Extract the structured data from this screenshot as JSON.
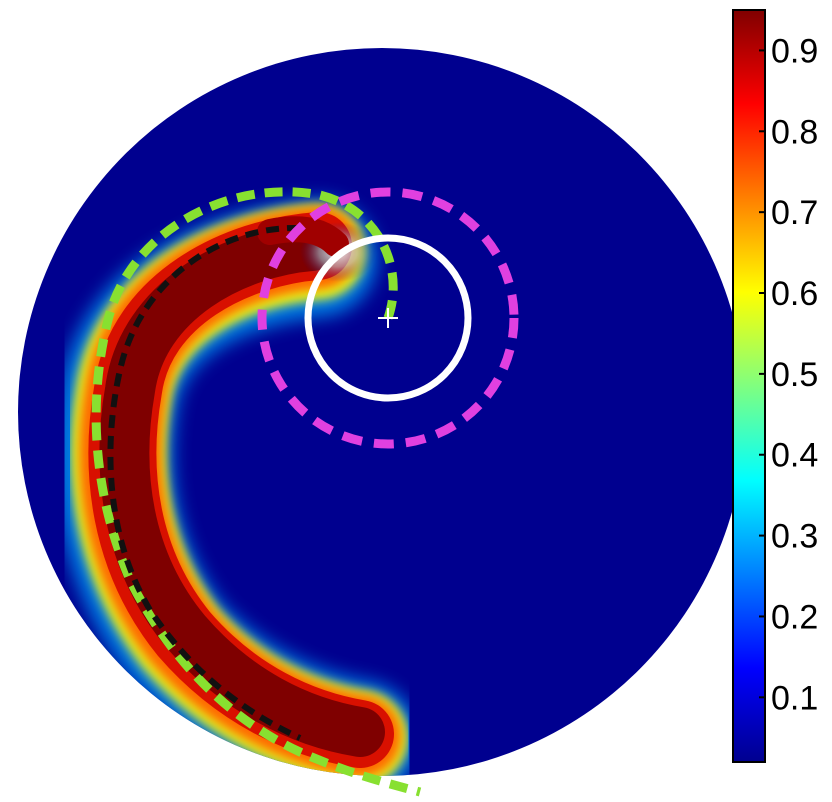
{
  "chart_data": {
    "type": "heatmap",
    "description_shape": "disk",
    "title": "",
    "xlabel": "",
    "ylabel": "",
    "colormap": "jet",
    "colorbar": {
      "range": [
        0.02,
        0.95
      ],
      "ticks": [
        0.1,
        0.2,
        0.3,
        0.4,
        0.5,
        0.6,
        0.7,
        0.8,
        0.9
      ],
      "tick_labels": [
        "0.1",
        "0.2",
        "0.3",
        "0.4",
        "0.5",
        "0.6",
        "0.7",
        "0.8",
        "0.9"
      ]
    },
    "field": {
      "background_value": 0.02,
      "band_peak_value": 0.95,
      "feature": "spiral band of high values curling from the lower-left edge up and around toward the central marker"
    },
    "overlays": [
      {
        "kind": "spiral-curve",
        "color": "#88e030",
        "style": "dashed"
      },
      {
        "kind": "spiral-curve",
        "color": "#111111",
        "style": "dashed"
      },
      {
        "kind": "circle",
        "color": "#ffffff",
        "style": "solid"
      },
      {
        "kind": "circle",
        "color": "#e040e0",
        "style": "dashed"
      },
      {
        "kind": "center-marker",
        "color": "#ffffff",
        "symbol": "+"
      }
    ],
    "colors": {
      "background": "#00008f",
      "band_core": "#7f0000",
      "green_curve": "#88e030",
      "black_curve": "#111111",
      "white_circle": "#ffffff",
      "magenta_circle": "#e040e0"
    }
  }
}
